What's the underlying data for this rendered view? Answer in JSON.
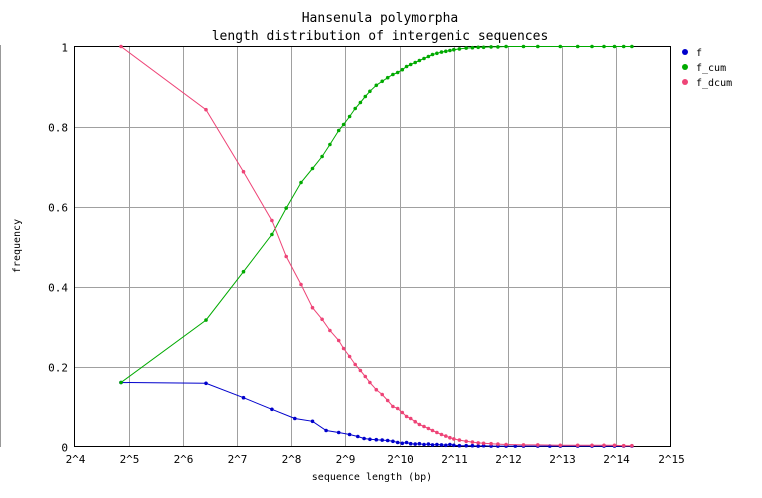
{
  "chart_data": {
    "type": "line",
    "title": "Hansenula polymorpha",
    "subtitle": "length distribution of intergenic sequences",
    "xlabel": "sequence length (bp)",
    "ylabel": "frequency",
    "x_scale": "log2",
    "xlim": [
      16,
      32768
    ],
    "ylim": [
      0,
      1
    ],
    "x_ticks": [
      {
        "value": 16,
        "label": "2^4"
      },
      {
        "value": 32,
        "label": "2^5"
      },
      {
        "value": 64,
        "label": "2^6"
      },
      {
        "value": 128,
        "label": "2^7"
      },
      {
        "value": 256,
        "label": "2^8"
      },
      {
        "value": 512,
        "label": "2^9"
      },
      {
        "value": 1024,
        "label": "2^10"
      },
      {
        "value": 2048,
        "label": "2^11"
      },
      {
        "value": 4096,
        "label": "2^12"
      },
      {
        "value": 8192,
        "label": "2^13"
      },
      {
        "value": 16384,
        "label": "2^14"
      },
      {
        "value": 32768,
        "label": "2^15"
      }
    ],
    "y_ticks": [
      {
        "value": 0,
        "label": "0"
      },
      {
        "value": 0.2,
        "label": "0.2"
      },
      {
        "value": 0.4,
        "label": "0.4"
      },
      {
        "value": 0.6,
        "label": "0.6"
      },
      {
        "value": 0.8,
        "label": "0.8"
      },
      {
        "value": 1,
        "label": "1"
      }
    ],
    "grid": true,
    "legend_position": "right",
    "series": [
      {
        "name": "f",
        "color": "#0000cc",
        "points": [
          [
            29,
            0.16
          ],
          [
            86,
            0.158
          ],
          [
            139,
            0.122
          ],
          [
            200,
            0.093
          ],
          [
            268,
            0.07
          ],
          [
            336,
            0.063
          ],
          [
            400,
            0.04
          ],
          [
            470,
            0.035
          ],
          [
            540,
            0.03
          ],
          [
            600,
            0.025
          ],
          [
            650,
            0.02
          ],
          [
            700,
            0.018
          ],
          [
            760,
            0.017
          ],
          [
            820,
            0.016
          ],
          [
            880,
            0.015
          ],
          [
            940,
            0.013
          ],
          [
            1000,
            0.01
          ],
          [
            1060,
            0.008
          ],
          [
            1120,
            0.01
          ],
          [
            1180,
            0.007
          ],
          [
            1250,
            0.006
          ],
          [
            1320,
            0.007
          ],
          [
            1400,
            0.005
          ],
          [
            1480,
            0.006
          ],
          [
            1560,
            0.004
          ],
          [
            1650,
            0.005
          ],
          [
            1750,
            0.004
          ],
          [
            1850,
            0.003
          ],
          [
            1950,
            0.005
          ],
          [
            2050,
            0.003
          ],
          [
            2200,
            0.002
          ],
          [
            2400,
            0.002
          ],
          [
            2600,
            0.002
          ],
          [
            2800,
            0.001
          ],
          [
            3000,
            0.002
          ],
          [
            3300,
            0.001
          ],
          [
            3600,
            0.001
          ],
          [
            4000,
            0.001
          ],
          [
            4500,
            0.001
          ],
          [
            5000,
            0.001
          ],
          [
            6000,
            0.001
          ],
          [
            7000,
            0.001
          ],
          [
            8000,
            0.001
          ],
          [
            10000,
            0.001
          ],
          [
            12000,
            0.001
          ],
          [
            14000,
            0.001
          ],
          [
            16000,
            0.001
          ],
          [
            18000,
            0.001
          ],
          [
            20000,
            0.001
          ]
        ]
      },
      {
        "name": "f_cum",
        "color": "#00aa00",
        "points": [
          [
            29,
            0.16
          ],
          [
            86,
            0.316
          ],
          [
            139,
            0.437
          ],
          [
            200,
            0.53
          ],
          [
            240,
            0.596
          ],
          [
            290,
            0.66
          ],
          [
            336,
            0.695
          ],
          [
            380,
            0.725
          ],
          [
            420,
            0.755
          ],
          [
            470,
            0.79
          ],
          [
            500,
            0.805
          ],
          [
            540,
            0.825
          ],
          [
            580,
            0.845
          ],
          [
            620,
            0.86
          ],
          [
            660,
            0.875
          ],
          [
            700,
            0.888
          ],
          [
            760,
            0.903
          ],
          [
            820,
            0.913
          ],
          [
            880,
            0.922
          ],
          [
            940,
            0.93
          ],
          [
            1000,
            0.935
          ],
          [
            1060,
            0.942
          ],
          [
            1120,
            0.95
          ],
          [
            1180,
            0.955
          ],
          [
            1250,
            0.96
          ],
          [
            1320,
            0.965
          ],
          [
            1400,
            0.97
          ],
          [
            1480,
            0.975
          ],
          [
            1560,
            0.98
          ],
          [
            1650,
            0.983
          ],
          [
            1750,
            0.986
          ],
          [
            1850,
            0.988
          ],
          [
            1950,
            0.99
          ],
          [
            2050,
            0.992
          ],
          [
            2200,
            0.994
          ],
          [
            2400,
            0.996
          ],
          [
            2600,
            0.997
          ],
          [
            2800,
            0.998
          ],
          [
            3000,
            0.998
          ],
          [
            3300,
            0.999
          ],
          [
            3600,
            0.999
          ],
          [
            4000,
            1
          ],
          [
            5000,
            1
          ],
          [
            6000,
            1
          ],
          [
            8000,
            1
          ],
          [
            10000,
            1
          ],
          [
            12000,
            1
          ],
          [
            14000,
            1
          ],
          [
            16000,
            1
          ],
          [
            18000,
            1
          ],
          [
            20000,
            1
          ]
        ]
      },
      {
        "name": "f_dcum",
        "color": "#ee4477",
        "points": [
          [
            29,
            1
          ],
          [
            86,
            0.842
          ],
          [
            139,
            0.687
          ],
          [
            200,
            0.565
          ],
          [
            240,
            0.475
          ],
          [
            290,
            0.405
          ],
          [
            336,
            0.347
          ],
          [
            380,
            0.318
          ],
          [
            420,
            0.29
          ],
          [
            470,
            0.265
          ],
          [
            500,
            0.245
          ],
          [
            540,
            0.225
          ],
          [
            580,
            0.205
          ],
          [
            620,
            0.19
          ],
          [
            660,
            0.175
          ],
          [
            700,
            0.16
          ],
          [
            760,
            0.142
          ],
          [
            820,
            0.13
          ],
          [
            880,
            0.115
          ],
          [
            940,
            0.1
          ],
          [
            1000,
            0.095
          ],
          [
            1060,
            0.085
          ],
          [
            1120,
            0.075
          ],
          [
            1180,
            0.07
          ],
          [
            1250,
            0.062
          ],
          [
            1320,
            0.055
          ],
          [
            1400,
            0.05
          ],
          [
            1480,
            0.045
          ],
          [
            1560,
            0.04
          ],
          [
            1650,
            0.035
          ],
          [
            1750,
            0.03
          ],
          [
            1850,
            0.026
          ],
          [
            1950,
            0.022
          ],
          [
            2050,
            0.019
          ],
          [
            2200,
            0.016
          ],
          [
            2400,
            0.013
          ],
          [
            2600,
            0.011
          ],
          [
            2800,
            0.009
          ],
          [
            3000,
            0.008
          ],
          [
            3300,
            0.007
          ],
          [
            3600,
            0.006
          ],
          [
            4000,
            0.005
          ],
          [
            5000,
            0.004
          ],
          [
            6000,
            0.004
          ],
          [
            8000,
            0.003
          ],
          [
            10000,
            0.003
          ],
          [
            12000,
            0.003
          ],
          [
            14000,
            0.003
          ],
          [
            16000,
            0.003
          ],
          [
            18000,
            0.002
          ],
          [
            20000,
            0.002
          ]
        ]
      }
    ]
  }
}
